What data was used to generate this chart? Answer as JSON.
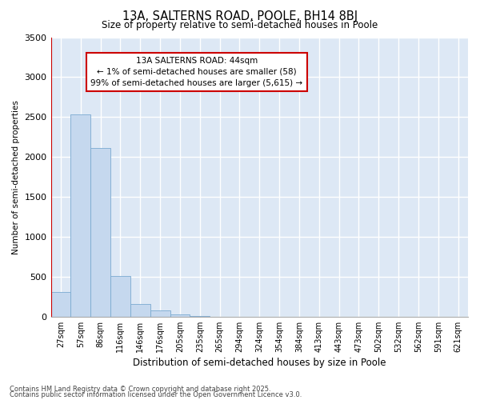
{
  "title_line1": "13A, SALTERNS ROAD, POOLE, BH14 8BJ",
  "title_line2": "Size of property relative to semi-detached houses in Poole",
  "xlabel": "Distribution of semi-detached houses by size in Poole",
  "ylabel": "Number of semi-detached properties",
  "categories": [
    "27sqm",
    "57sqm",
    "86sqm",
    "116sqm",
    "146sqm",
    "176sqm",
    "205sqm",
    "235sqm",
    "265sqm",
    "294sqm",
    "324sqm",
    "354sqm",
    "384sqm",
    "413sqm",
    "443sqm",
    "473sqm",
    "502sqm",
    "532sqm",
    "562sqm",
    "591sqm",
    "621sqm"
  ],
  "values": [
    305,
    2530,
    2110,
    510,
    155,
    75,
    30,
    5,
    2,
    1,
    0,
    0,
    0,
    0,
    0,
    0,
    0,
    0,
    0,
    0,
    0
  ],
  "bar_color": "#c5d8ee",
  "bar_edge_color": "#7aaad0",
  "background_color": "#dde8f5",
  "grid_color": "#ffffff",
  "annotation_box_edge": "#cc0000",
  "annotation_line1": "13A SALTERNS ROAD: 44sqm",
  "annotation_line2": "← 1% of semi-detached houses are smaller (58)",
  "annotation_line3": "99% of semi-detached houses are larger (5,615) →",
  "marker_color": "#cc0000",
  "ylim": [
    0,
    3500
  ],
  "yticks": [
    0,
    500,
    1000,
    1500,
    2000,
    2500,
    3000,
    3500
  ],
  "footnote1": "Contains HM Land Registry data © Crown copyright and database right 2025.",
  "footnote2": "Contains public sector information licensed under the Open Government Licence v3.0.",
  "fig_bg": "#ffffff"
}
